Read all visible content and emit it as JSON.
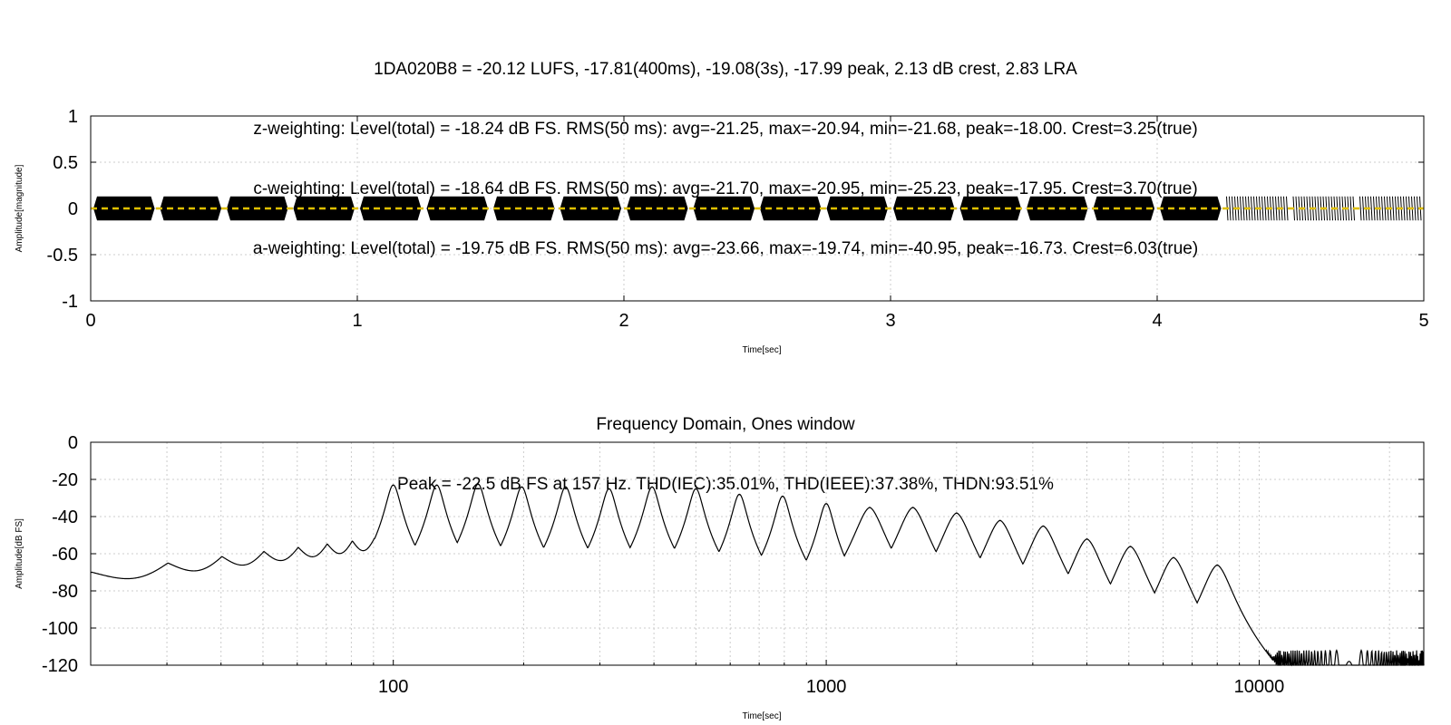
{
  "chart_data": [
    {
      "type": "line",
      "title": [
        "1DA020B8 = -20.12 LUFS, -17.81(400ms), -19.08(3s), -17.99 peak, 2.13 dB crest, 2.83 LRA",
        "z-weighting: Level(total) = -18.24 dB FS. RMS(50 ms): avg=-21.25, max=-20.94, min=-21.68, peak=-18.00. Crest=3.25(true)",
        "c-weighting: Level(total) = -18.64 dB FS. RMS(50 ms): avg=-21.70, max=-20.95, min=-25.23, peak=-17.95. Crest=3.70(true)",
        "a-weighting: Level(total) = -19.75 dB FS. RMS(50 ms): avg=-23.66, max=-19.74, min=-40.95, peak=-16.73. Crest=6.03(true)"
      ],
      "xlabel": "Time[sec]",
      "ylabel": "Amplitude[magnitude]",
      "xlim": [
        0,
        5
      ],
      "ylim": [
        -1,
        1
      ],
      "xticks": [
        "0",
        "1",
        "2",
        "3",
        "4",
        "5"
      ],
      "yticks": [
        "1",
        "0.5",
        "0",
        "-0.5",
        "-1"
      ],
      "grid": true,
      "segments": {
        "count": 20,
        "duration": 0.25,
        "amplitude": 0.13,
        "dense_until_segment": 17
      },
      "dc_line": {
        "value": 0,
        "color": "#e0c000"
      },
      "waveform_color": "#000000"
    },
    {
      "type": "line",
      "title": [
        "Frequency Domain, Ones window",
        "Peak = -22.5 dB FS at 157 Hz. THD(IEC):35.01%, THD(IEEE):37.38%, THDN:93.51%"
      ],
      "xlabel": "Time[sec]",
      "ylabel": "Amplitude[dB FS]",
      "xscale": "log",
      "xlim": [
        20,
        24000
      ],
      "ylim": [
        -120,
        0
      ],
      "xticks": [
        "100",
        "1000",
        "10000"
      ],
      "yticks": [
        "0",
        "-20",
        "-40",
        "-60",
        "-80",
        "-100",
        "-120"
      ],
      "grid": true,
      "peaks": [
        {
          "f": 100,
          "db": -23
        },
        {
          "f": 126,
          "db": -23
        },
        {
          "f": 157,
          "db": -22.5
        },
        {
          "f": 198,
          "db": -24
        },
        {
          "f": 250,
          "db": -24
        },
        {
          "f": 315,
          "db": -25
        },
        {
          "f": 396,
          "db": -24
        },
        {
          "f": 500,
          "db": -25
        },
        {
          "f": 630,
          "db": -28
        },
        {
          "f": 793,
          "db": -29
        },
        {
          "f": 1000,
          "db": -33
        },
        {
          "f": 1260,
          "db": -35
        },
        {
          "f": 1585,
          "db": -35
        },
        {
          "f": 2000,
          "db": -38
        },
        {
          "f": 2520,
          "db": -42
        },
        {
          "f": 3170,
          "db": -45
        },
        {
          "f": 4000,
          "db": -52
        },
        {
          "f": 5040,
          "db": -56
        },
        {
          "f": 6340,
          "db": -62
        },
        {
          "f": 8000,
          "db": -66
        }
      ],
      "line_color": "#000000"
    }
  ]
}
